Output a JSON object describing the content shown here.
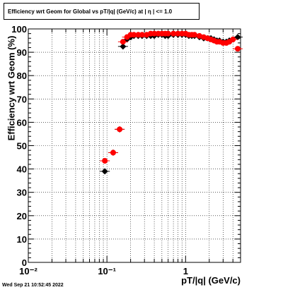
{
  "title": "Efficiency wrt Geom for Global vs pT/|q| (GeV/c) at |  η | <= 1.0",
  "footer": "Wed Sep 21 10:52:45 2022",
  "chart_data": {
    "type": "scatter",
    "xlabel": "pT/|q| (GeV/c)",
    "ylabel": "Efficiency wrt Geom (%)",
    "x_scale": "log",
    "xlim": [
      0.01,
      5
    ],
    "ylim": [
      0,
      100
    ],
    "grid": true,
    "x_tick_labels": [
      "10⁻²",
      "10⁻¹",
      "1"
    ],
    "y_tick_labels": [
      "0",
      "10",
      "20",
      "30",
      "40",
      "50",
      "60",
      "70",
      "80",
      "90",
      "100"
    ],
    "series": [
      {
        "color": "#000000",
        "marker": "diamond",
        "x": [
          0.094,
          0.12,
          0.145,
          0.16,
          0.18,
          0.2,
          0.22,
          0.25,
          0.28,
          0.32,
          0.36,
          0.4,
          0.45,
          0.5,
          0.55,
          0.6,
          0.7,
          0.8,
          0.9,
          1.0,
          1.1,
          1.2,
          1.3,
          1.5,
          1.7,
          1.9,
          2.1,
          2.3,
          2.5,
          2.7,
          3.0,
          3.3,
          3.6,
          4.0,
          4.6
        ],
        "y": [
          39,
          47,
          57,
          92.5,
          95.5,
          96.5,
          97,
          97,
          97,
          97,
          97,
          97,
          97.5,
          97.5,
          97,
          97,
          97.5,
          97.5,
          97.5,
          97.5,
          97,
          97,
          97,
          96.5,
          96,
          96,
          96,
          95.5,
          95,
          95,
          94.5,
          94.5,
          95,
          95.5,
          96.5
        ]
      },
      {
        "color": "#ff0000",
        "marker": "circle",
        "x": [
          0.094,
          0.12,
          0.145,
          0.16,
          0.18,
          0.2,
          0.22,
          0.25,
          0.28,
          0.32,
          0.36,
          0.4,
          0.45,
          0.5,
          0.55,
          0.6,
          0.7,
          0.8,
          0.9,
          1.0,
          1.1,
          1.2,
          1.3,
          1.5,
          1.7,
          1.9,
          2.1,
          2.3,
          2.5,
          2.7,
          3.0,
          3.3,
          3.6,
          4.0,
          4.6
        ],
        "y": [
          43.5,
          47,
          57,
          94.5,
          96.5,
          97.5,
          97.5,
          97.5,
          97.5,
          97.5,
          98,
          98,
          98,
          98,
          98,
          98,
          98,
          98,
          98,
          98,
          97.5,
          97.5,
          97.5,
          97,
          96.5,
          96,
          95.5,
          95,
          94.5,
          94.5,
          94,
          94,
          94.5,
          95.5,
          91.5
        ]
      }
    ]
  }
}
